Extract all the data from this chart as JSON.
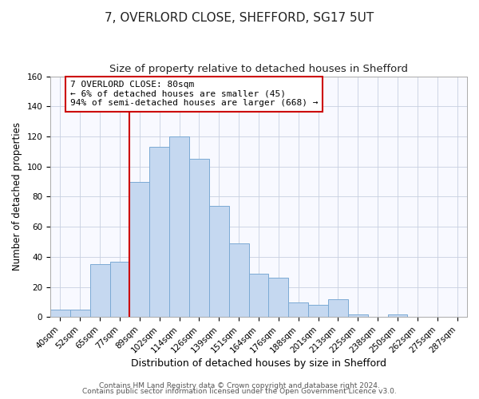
{
  "title": "7, OVERLORD CLOSE, SHEFFORD, SG17 5UT",
  "subtitle": "Size of property relative to detached houses in Shefford",
  "xlabel": "Distribution of detached houses by size in Shefford",
  "ylabel": "Number of detached properties",
  "bar_labels": [
    "40sqm",
    "52sqm",
    "65sqm",
    "77sqm",
    "89sqm",
    "102sqm",
    "114sqm",
    "126sqm",
    "139sqm",
    "151sqm",
    "164sqm",
    "176sqm",
    "188sqm",
    "201sqm",
    "213sqm",
    "225sqm",
    "238sqm",
    "250sqm",
    "262sqm",
    "275sqm",
    "287sqm"
  ],
  "bar_values": [
    5,
    5,
    35,
    37,
    90,
    113,
    120,
    105,
    74,
    49,
    29,
    26,
    10,
    8,
    12,
    2,
    0,
    2,
    0,
    0,
    0
  ],
  "bar_color": "#c5d8f0",
  "bar_edge_color": "#7baad4",
  "vline_x": 3.5,
  "vline_color": "#cc0000",
  "annotation_title": "7 OVERLORD CLOSE: 80sqm",
  "annotation_line1": "← 6% of detached houses are smaller (45)",
  "annotation_line2": "94% of semi-detached houses are larger (668) →",
  "annotation_box_color": "#ffffff",
  "annotation_box_edge": "#cc0000",
  "ylim": [
    0,
    160
  ],
  "footer1": "Contains HM Land Registry data © Crown copyright and database right 2024.",
  "footer2": "Contains public sector information licensed under the Open Government Licence v3.0.",
  "title_fontsize": 11,
  "subtitle_fontsize": 9.5,
  "xlabel_fontsize": 9,
  "ylabel_fontsize": 8.5,
  "tick_fontsize": 7.5,
  "annotation_fontsize": 8,
  "footer_fontsize": 6.5
}
